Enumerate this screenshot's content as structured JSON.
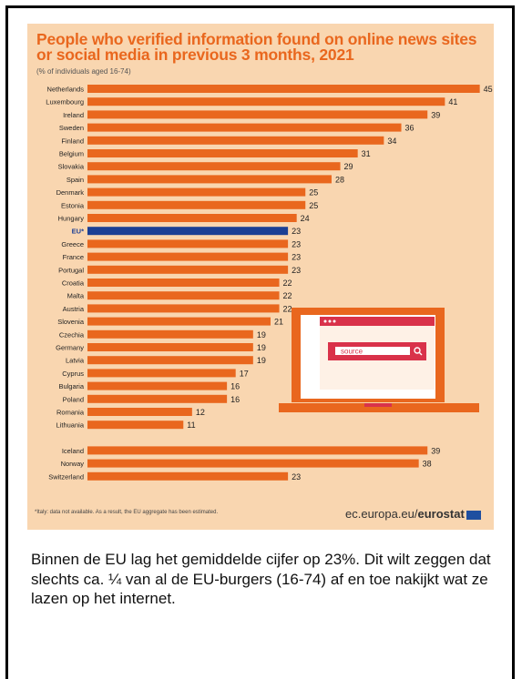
{
  "chart_data": {
    "type": "bar",
    "orientation": "horizontal",
    "title": "People who verified information found on online news sites or social media in previous 3 months, 2021",
    "subtitle": "(% of individuals aged 16-74)",
    "categories": [
      "Netherlands",
      "Luxembourg",
      "Ireland",
      "Sweden",
      "Finland",
      "Belgium",
      "Slovakia",
      "Spain",
      "Denmark",
      "Estonia",
      "Hungary",
      "EU*",
      "Greece",
      "France",
      "Portugal",
      "Croatia",
      "Malta",
      "Austria",
      "Slovenia",
      "Czechia",
      "Germany",
      "Latvia",
      "Cyprus",
      "Bulgaria",
      "Poland",
      "Romania",
      "Lithuania",
      "Iceland",
      "Norway",
      "Switzerland"
    ],
    "values": [
      45,
      41,
      39,
      36,
      34,
      31,
      29,
      28,
      25,
      25,
      24,
      23,
      23,
      23,
      23,
      22,
      22,
      22,
      21,
      19,
      19,
      19,
      17,
      16,
      16,
      12,
      11,
      39,
      38,
      23
    ],
    "highlight": "EU*",
    "colors": {
      "bar": "#e9671e",
      "highlight": "#1b3f94",
      "background": "#f9d6b0"
    },
    "footnote": "*Italy: data not available. As a result, the EU aggregate has been estimated.",
    "source": "ec.europa.eu/",
    "source_brand": "eurostat",
    "illustration": {
      "search_label": "source"
    }
  },
  "caption": "Binnen de EU lag het gemiddelde cijfer op 23%. Dit wilt zeggen dat slechts ca. ¼ van al de EU-burgers (16-74) af en toe nakijkt wat ze lazen op het internet."
}
